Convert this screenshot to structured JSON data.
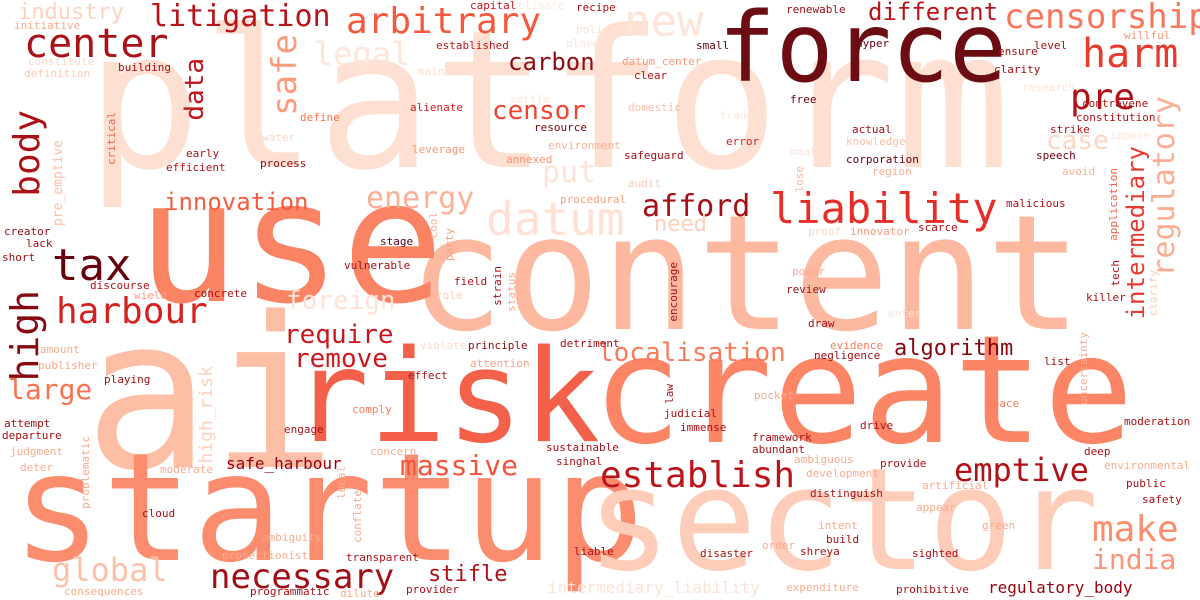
{
  "words": [
    {
      "text": "platform",
      "color": "#fde0d2"
    },
    {
      "text": "content",
      "color": "#fcb99f"
    },
    {
      "text": "use",
      "color": "#f98362"
    },
    {
      "text": "ai",
      "color": "#fcbea5"
    },
    {
      "text": "risk",
      "color": "#f4614a"
    },
    {
      "text": "create",
      "color": "#fb8565"
    },
    {
      "text": "startup",
      "color": "#fb8c6e"
    },
    {
      "text": "sector",
      "color": "#fdcdb9"
    },
    {
      "text": "force",
      "color": "#6b0d12"
    },
    {
      "text": "center",
      "color": "#ac1117"
    },
    {
      "text": "litigation",
      "color": "#b91419"
    },
    {
      "text": "arbitrary",
      "color": "#f6583e"
    },
    {
      "text": "new",
      "color": "#fee5d9"
    },
    {
      "text": "censorship",
      "color": "#f8765c"
    },
    {
      "text": "harm",
      "color": "#e83b2e"
    },
    {
      "text": "different",
      "color": "#b81419"
    },
    {
      "text": "industry",
      "color": "#fdd3c1"
    },
    {
      "text": "safe",
      "color": "#fc9c7d"
    },
    {
      "text": "data",
      "color": "#bd151a"
    },
    {
      "text": "body",
      "color": "#ab1016"
    },
    {
      "text": "legal",
      "color": "#fee5d8"
    },
    {
      "text": "carbon",
      "color": "#8d0c13"
    },
    {
      "text": "pre",
      "color": "#b11218"
    },
    {
      "text": "censor",
      "color": "#f14432"
    },
    {
      "text": "case",
      "color": "#fdd5c3"
    },
    {
      "text": "liability",
      "color": "#e32f27"
    },
    {
      "text": "afford",
      "color": "#a50f15"
    },
    {
      "text": "datum",
      "color": "#fee1d4"
    },
    {
      "text": "innovation",
      "color": "#f75c41"
    },
    {
      "text": "energy",
      "color": "#fcb095"
    },
    {
      "text": "put",
      "color": "#fee4d8"
    },
    {
      "text": "need",
      "color": "#fdd1be"
    },
    {
      "text": "tax",
      "color": "#67000d"
    },
    {
      "text": "high",
      "color": "#860811"
    },
    {
      "text": "harbour",
      "color": "#d52221"
    },
    {
      "text": "foreign",
      "color": "#fee2d5"
    },
    {
      "text": "require",
      "color": "#c9181d"
    },
    {
      "text": "remove",
      "color": "#ca181d"
    },
    {
      "text": "localisation",
      "color": "#fb7a5a"
    },
    {
      "text": "algorithm",
      "color": "#860811"
    },
    {
      "text": "intermediary",
      "color": "#e93a2f"
    },
    {
      "text": "regulatory",
      "color": "#fcae92"
    },
    {
      "text": "large",
      "color": "#fb7151"
    },
    {
      "text": "massive",
      "color": "#f5533b"
    },
    {
      "text": "establish",
      "color": "#bc141a"
    },
    {
      "text": "emptive",
      "color": "#b11218"
    },
    {
      "text": "make",
      "color": "#fc8d6d"
    },
    {
      "text": "india",
      "color": "#fc9576"
    },
    {
      "text": "global",
      "color": "#fcc1a8"
    },
    {
      "text": "necessary",
      "color": "#a10e15"
    },
    {
      "text": "stifle",
      "color": "#af1117"
    },
    {
      "text": "safe_harbour",
      "color": "#99000d"
    },
    {
      "text": "high_risk",
      "color": "#fdd1be"
    },
    {
      "text": "regulatory_body",
      "color": "#99000d"
    },
    {
      "text": "intermediary_liability",
      "color": "#fee2d5"
    },
    {
      "text": "initiative",
      "color": "#fcaa8d"
    },
    {
      "text": "constitute",
      "color": "#fed9c9"
    },
    {
      "text": "definition",
      "color": "#fdcab5"
    },
    {
      "text": "building",
      "color": "#a91016"
    },
    {
      "text": "capital",
      "color": "#c3161b"
    },
    {
      "text": "climate",
      "color": "#fee9df"
    },
    {
      "text": "recipe",
      "color": "#b31218"
    },
    {
      "text": "policy",
      "color": "#fee2d5"
    },
    {
      "text": "player",
      "color": "#fee5d8"
    },
    {
      "text": "established",
      "color": "#be151a"
    },
    {
      "text": "small",
      "color": "#67000d"
    },
    {
      "text": "datum_center",
      "color": "#fc9879"
    },
    {
      "text": "clear",
      "color": "#b31218"
    },
    {
      "text": "maintain",
      "color": "#fedaca"
    },
    {
      "text": "renewable",
      "color": "#a00e14"
    },
    {
      "text": "hyper",
      "color": "#67000d"
    },
    {
      "text": "ensure",
      "color": "#a10e15"
    },
    {
      "text": "level",
      "color": "#a10e15"
    },
    {
      "text": "clarity",
      "color": "#a10e15"
    },
    {
      "text": "willful",
      "color": "#fc9576"
    },
    {
      "text": "contravene",
      "color": "#af1117"
    },
    {
      "text": "constitution",
      "color": "#a91016"
    },
    {
      "text": "research",
      "color": "#fee4d8"
    },
    {
      "text": "impose",
      "color": "#fee4d8"
    },
    {
      "text": "strike",
      "color": "#af1117"
    },
    {
      "text": "speech",
      "color": "#67000d"
    },
    {
      "text": "avoid",
      "color": "#fcb296"
    },
    {
      "text": "alienate",
      "color": "#d11e1f"
    },
    {
      "text": "define",
      "color": "#fb7050"
    },
    {
      "text": "settle",
      "color": "#fee4d8"
    },
    {
      "text": "domestic",
      "color": "#fcbda4"
    },
    {
      "text": "leverage",
      "color": "#fc9777"
    },
    {
      "text": "environment",
      "color": "#fcb499"
    },
    {
      "text": "annexed",
      "color": "#fc9272"
    },
    {
      "text": "resource",
      "color": "#7c0510"
    },
    {
      "text": "safeguard",
      "color": "#a10e15"
    },
    {
      "text": "error",
      "color": "#d42121"
    },
    {
      "text": "free",
      "color": "#67000d"
    },
    {
      "text": "moat",
      "color": "#fee2d5"
    },
    {
      "text": "trade",
      "color": "#fee7dc"
    },
    {
      "text": "actual",
      "color": "#a50f15"
    },
    {
      "text": "knowledge",
      "color": "#fcc1a8"
    },
    {
      "text": "corporation",
      "color": "#67000d"
    },
    {
      "text": "region",
      "color": "#fcaf93"
    },
    {
      "text": "critical",
      "color": "#f4614a"
    },
    {
      "text": "water",
      "color": "#fdd4c2"
    },
    {
      "text": "early",
      "color": "#ad1117"
    },
    {
      "text": "efficient",
      "color": "#af1117"
    },
    {
      "text": "process",
      "color": "#8e0b13"
    },
    {
      "text": "audit",
      "color": "#fdcab5"
    },
    {
      "text": "procedural",
      "color": "#fc9e80"
    },
    {
      "text": "lose",
      "color": "#fcb99f"
    },
    {
      "text": "pre_emptive",
      "color": "#fcbea5"
    },
    {
      "text": "creator",
      "color": "#8f0c13"
    },
    {
      "text": "lack",
      "color": "#a60f15"
    },
    {
      "text": "short",
      "color": "#a00e14"
    },
    {
      "text": "discourse",
      "color": "#b21218"
    },
    {
      "text": "wield",
      "color": "#fc9e80"
    },
    {
      "text": "concrete",
      "color": "#ae1117"
    },
    {
      "text": "stage",
      "color": "#5c0009"
    },
    {
      "text": "vulnerable",
      "color": "#a60f15"
    },
    {
      "text": "cool",
      "color": "#fcb296"
    },
    {
      "text": "party",
      "color": "#fca486"
    },
    {
      "text": "proof",
      "color": "#fdd4c2"
    },
    {
      "text": "innovator",
      "color": "#fc9b7c"
    },
    {
      "text": "scarce",
      "color": "#a91016"
    },
    {
      "text": "malicious",
      "color": "#b31218"
    },
    {
      "text": "application",
      "color": "#f4614a"
    },
    {
      "text": "tech",
      "color": "#af1117"
    },
    {
      "text": "clarify",
      "color": "#fdc9b3"
    },
    {
      "text": "killer",
      "color": "#a91016"
    },
    {
      "text": "field",
      "color": "#a91016"
    },
    {
      "text": "strain",
      "color": "#a91016"
    },
    {
      "text": "status",
      "color": "#fcaa8d"
    },
    {
      "text": "role",
      "color": "#fdcab5"
    },
    {
      "text": "encourage",
      "color": "#a91016"
    },
    {
      "text": "power",
      "color": "#fcaa8d"
    },
    {
      "text": "review",
      "color": "#a10e15"
    },
    {
      "text": "draw",
      "color": "#a91016"
    },
    {
      "text": "enter",
      "color": "#fee4d8"
    },
    {
      "text": "amount",
      "color": "#fcaa8d"
    },
    {
      "text": "publisher",
      "color": "#fcaa8d"
    },
    {
      "text": "playing",
      "color": "#a60f15"
    },
    {
      "text": "violate",
      "color": "#fedbcc"
    },
    {
      "text": "principle",
      "color": "#8f0c13"
    },
    {
      "text": "attention",
      "color": "#fca183"
    },
    {
      "text": "detriment",
      "color": "#a10e15"
    },
    {
      "text": "evidence",
      "color": "#fb7a5a"
    },
    {
      "text": "negligence",
      "color": "#a00e14"
    },
    {
      "text": "list",
      "color": "#a00e14"
    },
    {
      "text": "uncertainty",
      "color": "#fcaa8d"
    },
    {
      "text": "effect",
      "color": "#a91016"
    },
    {
      "text": "comply",
      "color": "#fb7a5a"
    },
    {
      "text": "law",
      "color": "#a91016"
    },
    {
      "text": "judicial",
      "color": "#a91016"
    },
    {
      "text": "immense",
      "color": "#a91016"
    },
    {
      "text": "pocket",
      "color": "#fcaa8d"
    },
    {
      "text": "space",
      "color": "#fb7a5a"
    },
    {
      "text": "attempt",
      "color": "#a00e14"
    },
    {
      "text": "departure",
      "color": "#a00e14"
    },
    {
      "text": "judgment",
      "color": "#fcaa8d"
    },
    {
      "text": "engage",
      "color": "#a91016"
    },
    {
      "text": "framework",
      "color": "#a91016"
    },
    {
      "text": "abundant",
      "color": "#a91016"
    },
    {
      "text": "drive",
      "color": "#a91016"
    },
    {
      "text": "moderation",
      "color": "#a91016"
    },
    {
      "text": "deep",
      "color": "#a91016"
    },
    {
      "text": "deter",
      "color": "#fcaa8d"
    },
    {
      "text": "problematic",
      "color": "#fcaa8d"
    },
    {
      "text": "moderate",
      "color": "#fcaa8d"
    },
    {
      "text": "local",
      "color": "#fcaa8d"
    },
    {
      "text": "concern",
      "color": "#fcaa8d"
    },
    {
      "text": "sustainable",
      "color": "#a91016"
    },
    {
      "text": "singhal",
      "color": "#a91016"
    },
    {
      "text": "ambiguous",
      "color": "#fcaa8d"
    },
    {
      "text": "development",
      "color": "#fcaa8d"
    },
    {
      "text": "provide",
      "color": "#a91016"
    },
    {
      "text": "environmental",
      "color": "#fcaa8d"
    },
    {
      "text": "public",
      "color": "#a91016"
    },
    {
      "text": "safety",
      "color": "#a91016"
    },
    {
      "text": "artificial",
      "color": "#fcaa8d"
    },
    {
      "text": "cloud",
      "color": "#a91016"
    },
    {
      "text": "conflate",
      "color": "#fcaa8d"
    },
    {
      "text": "distinguish",
      "color": "#a91016"
    },
    {
      "text": "appear",
      "color": "#fcaa8d"
    },
    {
      "text": "build",
      "color": "#a91016"
    },
    {
      "text": "shreya",
      "color": "#a91016"
    },
    {
      "text": "intent",
      "color": "#fcaa8d"
    },
    {
      "text": "green",
      "color": "#fcaa8d"
    },
    {
      "text": "ambiguity",
      "color": "#fcaa8d"
    },
    {
      "text": "order",
      "color": "#fcaa8d"
    },
    {
      "text": "liable",
      "color": "#a91016"
    },
    {
      "text": "disaster",
      "color": "#a91016"
    },
    {
      "text": "sighted",
      "color": "#a91016"
    },
    {
      "text": "protectionist",
      "color": "#fcaa8d"
    },
    {
      "text": "transparent",
      "color": "#a91016"
    },
    {
      "text": "programmatic",
      "color": "#a91016"
    },
    {
      "text": "dilute",
      "color": "#fcaa8d"
    },
    {
      "text": "provider",
      "color": "#a91016"
    },
    {
      "text": "prohibitive",
      "color": "#a91016"
    },
    {
      "text": "expenditure",
      "color": "#fcaa8d"
    },
    {
      "text": "consequences",
      "color": "#fcaa8d"
    }
  ]
}
